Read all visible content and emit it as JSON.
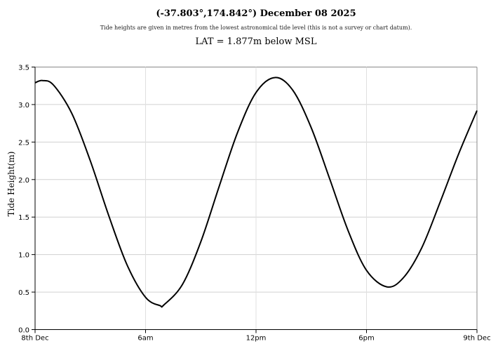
{
  "chart_data": {
    "type": "line",
    "title": "(-37.803°,174.842°) December 08 2025",
    "subtitle": "Tide heights are given in metres from the lowest astronomical tide level (this is not a survey or chart datum).",
    "subtitle2": "LAT = 1.877m below MSL",
    "xlabel": "",
    "ylabel": "Tide Height(m)",
    "ylim": [
      0,
      3.5
    ],
    "yticks": [
      "0.0",
      "0.5",
      "1.0",
      "1.5",
      "2.0",
      "2.5",
      "3.0",
      "3.5"
    ],
    "xlim": [
      "00:00",
      "24:00"
    ],
    "xticks": [
      {
        "time": "00:00",
        "label": "8th Dec"
      },
      {
        "time": "06:00",
        "label": "6am"
      },
      {
        "time": "12:00",
        "label": "12pm"
      },
      {
        "time": "18:00",
        "label": "6pm"
      },
      {
        "time": "24:00",
        "label": "9th Dec"
      }
    ],
    "grid": true,
    "line_color": "#000000",
    "points": [
      {
        "time": "00:00",
        "height": 3.29
      },
      {
        "time": "00:24",
        "height": 3.32
      },
      {
        "time": "01:00",
        "height": 3.26
      },
      {
        "time": "02:00",
        "height": 2.88
      },
      {
        "time": "03:00",
        "height": 2.25
      },
      {
        "time": "04:00",
        "height": 1.52
      },
      {
        "time": "05:00",
        "height": 0.86
      },
      {
        "time": "06:00",
        "height": 0.43
      },
      {
        "time": "06:47",
        "height": 0.32
      },
      {
        "time": "07:00",
        "height": 0.33
      },
      {
        "time": "08:00",
        "height": 0.6
      },
      {
        "time": "09:00",
        "height": 1.17
      },
      {
        "time": "10:00",
        "height": 1.91
      },
      {
        "time": "11:00",
        "height": 2.63
      },
      {
        "time": "12:00",
        "height": 3.16
      },
      {
        "time": "13:02",
        "height": 3.36
      },
      {
        "time": "14:00",
        "height": 3.19
      },
      {
        "time": "15:00",
        "height": 2.69
      },
      {
        "time": "16:00",
        "height": 2.01
      },
      {
        "time": "17:00",
        "height": 1.32
      },
      {
        "time": "18:00",
        "height": 0.79
      },
      {
        "time": "19:06",
        "height": 0.57
      },
      {
        "time": "20:00",
        "height": 0.69
      },
      {
        "time": "21:00",
        "height": 1.09
      },
      {
        "time": "22:00",
        "height": 1.7
      },
      {
        "time": "23:00",
        "height": 2.34
      },
      {
        "time": "24:00",
        "height": 2.92
      }
    ]
  }
}
